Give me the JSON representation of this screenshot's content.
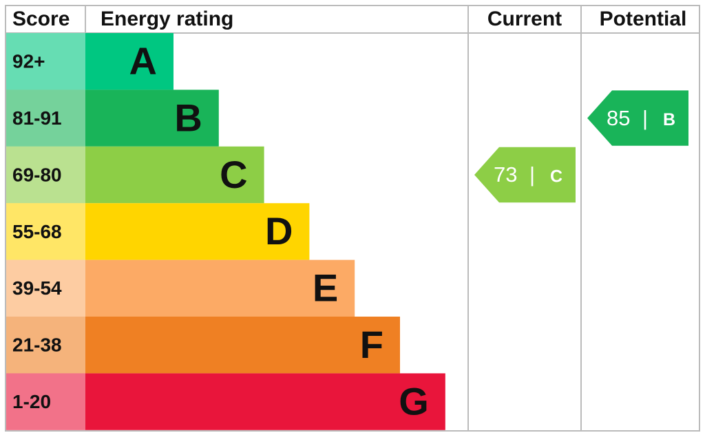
{
  "header": {
    "score": "Score",
    "rating": "Energy rating",
    "current": "Current",
    "potential": "Potential"
  },
  "bands": [
    {
      "score": "92+",
      "letter": "A",
      "color": "#00c781"
    },
    {
      "score": "81-91",
      "letter": "B",
      "color": "#19b459"
    },
    {
      "score": "69-80",
      "letter": "C",
      "color": "#8dce46"
    },
    {
      "score": "55-68",
      "letter": "D",
      "color": "#ffd500"
    },
    {
      "score": "39-54",
      "letter": "E",
      "color": "#fcaa65"
    },
    {
      "score": "21-38",
      "letter": "F",
      "color": "#ef8023"
    },
    {
      "score": "1-20",
      "letter": "G",
      "color": "#e9153b"
    }
  ],
  "current": {
    "value": 73,
    "separator": "|",
    "rating": "C"
  },
  "potential": {
    "value": 85,
    "separator": "|",
    "rating": "B"
  }
}
